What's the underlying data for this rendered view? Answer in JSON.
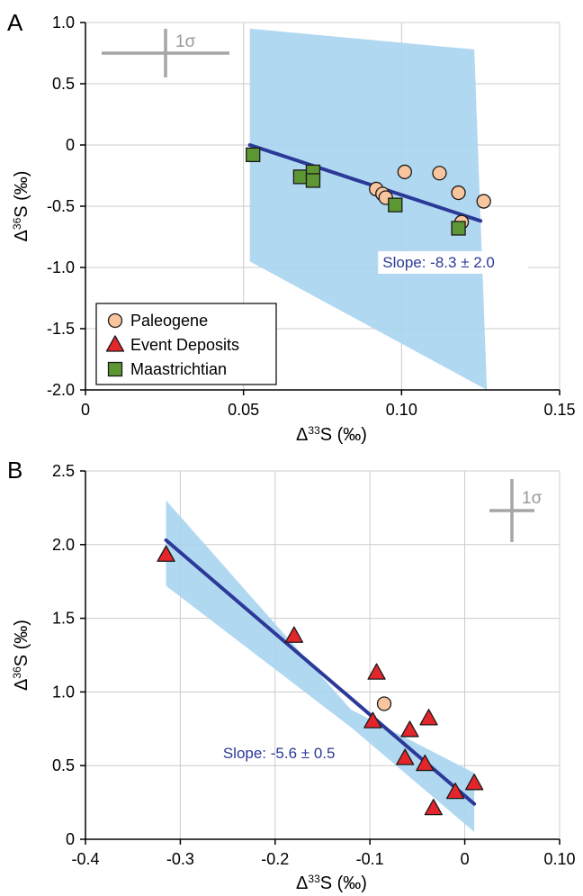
{
  "chart_data": [
    {
      "panel_label": "A",
      "type": "scatter",
      "xlabel": {
        "prefix": "Δ",
        "sup": "33",
        "suffix": "S (‰)"
      },
      "ylabel": {
        "prefix": "Δ",
        "sup": "36",
        "suffix": "S (‰)"
      },
      "xlim": [
        0,
        0.15
      ],
      "ylim": [
        -2.0,
        1.0
      ],
      "x_ticks": [
        0,
        0.05,
        0.1,
        0.15
      ],
      "x_tick_labels": [
        "0",
        "0.05",
        "0.10",
        "0.15"
      ],
      "y_ticks": [
        1.0,
        0.5,
        0,
        -0.5,
        -1.0,
        -1.5,
        -2.0
      ],
      "y_tick_labels": [
        "1.0",
        "0.5",
        "0",
        "-0.5",
        "-1.0",
        "-1.5",
        "-2.0"
      ],
      "grid": true,
      "legend_position": "bottom-left",
      "error_bar_label": "1σ",
      "error_bar_position": "top-left",
      "series": [
        {
          "name": "Paleogene",
          "marker": "circle",
          "color": "#f9c59e",
          "points": [
            [
              0.092,
              -0.36
            ],
            [
              0.094,
              -0.4
            ],
            [
              0.095,
              -0.43
            ],
            [
              0.101,
              -0.22
            ],
            [
              0.112,
              -0.23
            ],
            [
              0.118,
              -0.39
            ],
            [
              0.119,
              -0.63
            ],
            [
              0.126,
              -0.46
            ]
          ]
        },
        {
          "name": "Event Deposits",
          "marker": "triangle",
          "color": "#e2262b",
          "points": []
        },
        {
          "name": "Maastrichtian",
          "marker": "square",
          "color": "#5d9733",
          "points": [
            [
              0.053,
              -0.08
            ],
            [
              0.068,
              -0.26
            ],
            [
              0.072,
              -0.22
            ],
            [
              0.072,
              -0.29
            ],
            [
              0.098,
              -0.49
            ],
            [
              0.118,
              -0.68
            ]
          ]
        }
      ],
      "fit_line": {
        "x": [
          0.052,
          0.125
        ],
        "y": [
          0.0,
          -0.62
        ],
        "color": "#2b3a98"
      },
      "confidence_band": [
        [
          0.052,
          0.95
        ],
        [
          0.123,
          0.78
        ],
        [
          0.127,
          -2.0
        ],
        [
          0.052,
          -0.95
        ]
      ],
      "slope_annotation": "Slope: -8.3 ± 2.0",
      "slope_anchor": [
        0.094,
        -1.0
      ]
    },
    {
      "panel_label": "B",
      "type": "scatter",
      "xlabel": {
        "prefix": "Δ",
        "sup": "33",
        "suffix": "S (‰)"
      },
      "ylabel": {
        "prefix": "Δ",
        "sup": "36",
        "suffix": "S (‰)"
      },
      "xlim": [
        -0.4,
        0.1
      ],
      "ylim": [
        0,
        2.5
      ],
      "x_ticks": [
        -0.4,
        -0.3,
        -0.2,
        -0.1,
        0,
        0.1
      ],
      "x_tick_labels": [
        "-0.4",
        "-0.3",
        "-0.2",
        "-0.1",
        "0",
        "0.10"
      ],
      "y_ticks": [
        2.5,
        2.0,
        1.5,
        1.0,
        0.5,
        0
      ],
      "y_tick_labels": [
        "2.5",
        "2.0",
        "1.5",
        "1.0",
        "0.5",
        "0"
      ],
      "grid": true,
      "error_bar_label": "1σ",
      "error_bar_position": "top-right",
      "series": [
        {
          "name": "Paleogene",
          "marker": "circle",
          "color": "#f9c59e",
          "points": [
            [
              -0.085,
              0.92
            ]
          ]
        },
        {
          "name": "Event Deposits",
          "marker": "triangle",
          "color": "#e2262b",
          "points": [
            [
              -0.315,
              1.93
            ],
            [
              -0.18,
              1.38
            ],
            [
              -0.093,
              1.13
            ],
            [
              -0.097,
              0.8
            ],
            [
              -0.058,
              0.74
            ],
            [
              -0.038,
              0.82
            ],
            [
              -0.063,
              0.55
            ],
            [
              -0.042,
              0.51
            ],
            [
              -0.033,
              0.21
            ],
            [
              -0.01,
              0.32
            ],
            [
              0.01,
              0.38
            ]
          ]
        },
        {
          "name": "Maastrichtian",
          "marker": "square",
          "color": "#5d9733",
          "points": []
        }
      ],
      "fit_line": {
        "x": [
          -0.315,
          0.01
        ],
        "y": [
          2.03,
          0.24
        ],
        "color": "#2b3a98"
      },
      "confidence_band": [
        [
          -0.315,
          2.3
        ],
        [
          -0.12,
          0.88
        ],
        [
          0.01,
          0.45
        ],
        [
          0.01,
          0.05
        ],
        [
          -0.12,
          0.76
        ],
        [
          -0.315,
          1.72
        ]
      ],
      "slope_annotation": "Slope: -5.6 ± 0.5",
      "slope_anchor": [
        -0.255,
        0.55
      ]
    }
  ]
}
